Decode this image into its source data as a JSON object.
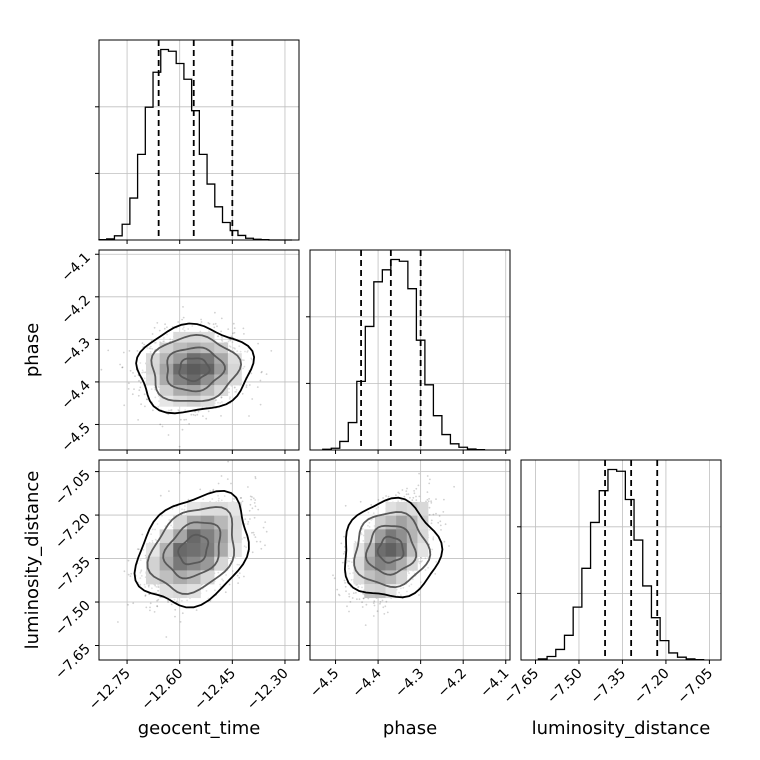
{
  "chart_data": {
    "type": "corner",
    "parameters": [
      "geocent_time",
      "phase",
      "luminosity_distance"
    ],
    "grid": true,
    "diagonal_histograms": [
      {
        "parameter": "geocent_time",
        "bin_edges": [
          -12.83,
          -12.808,
          -12.786,
          -12.764,
          -12.742,
          -12.72,
          -12.698,
          -12.676,
          -12.654,
          -12.632,
          -12.61,
          -12.588,
          -12.566,
          -12.544,
          -12.522,
          -12.5,
          -12.478,
          -12.456,
          -12.434,
          -12.412,
          -12.39,
          -12.368,
          -12.346,
          -12.324,
          -12.302,
          -12.28
        ],
        "counts": [
          1,
          3,
          12,
          45,
          120,
          245,
          380,
          480,
          545,
          540,
          505,
          460,
          370,
          245,
          160,
          95,
          50,
          27,
          13,
          5,
          2,
          1,
          0,
          0,
          0
        ],
        "quantiles": [
          -12.66,
          -12.56,
          -12.45
        ],
        "xlim": [
          -12.83,
          -12.26
        ]
      },
      {
        "parameter": "phase",
        "bin_edges": [
          -4.53,
          -4.51,
          -4.49,
          -4.47,
          -4.45,
          -4.43,
          -4.41,
          -4.39,
          -4.37,
          -4.35,
          -4.33,
          -4.31,
          -4.29,
          -4.27,
          -4.25,
          -4.23,
          -4.21,
          -4.19,
          -4.17,
          -4.15
        ],
        "counts": [
          2,
          5,
          25,
          80,
          200,
          360,
          490,
          525,
          555,
          550,
          470,
          320,
          190,
          100,
          45,
          18,
          8,
          3,
          1
        ],
        "quantiles": [
          -4.44,
          -4.37,
          -4.3
        ],
        "xlim": [
          -4.56,
          -4.09
        ]
      },
      {
        "parameter": "luminosity_distance",
        "bin_edges": [
          -7.64,
          -7.61,
          -7.58,
          -7.55,
          -7.52,
          -7.49,
          -7.46,
          -7.43,
          -7.4,
          -7.37,
          -7.34,
          -7.31,
          -7.28,
          -7.25,
          -7.22,
          -7.19,
          -7.16,
          -7.13,
          -7.1,
          -7.07
        ],
        "counts": [
          3,
          10,
          30,
          70,
          150,
          260,
          390,
          480,
          540,
          535,
          455,
          340,
          210,
          120,
          55,
          20,
          8,
          3,
          1
        ],
        "quantiles": [
          -7.41,
          -7.32,
          -7.23
        ],
        "xlim": [
          -7.7,
          -7.01
        ]
      }
    ],
    "two_d_panels": [
      {
        "x": "geocent_time",
        "y": "phase",
        "center": [
          -12.56,
          -4.37
        ],
        "sigma": [
          0.07,
          0.045
        ],
        "correlation": 0.05,
        "xlim": [
          -12.83,
          -12.26
        ],
        "ylim": [
          -4.56,
          -4.09
        ],
        "contour_levels": 4
      },
      {
        "x": "geocent_time",
        "y": "luminosity_distance",
        "center": [
          -12.56,
          -7.32
        ],
        "sigma": [
          0.07,
          0.085
        ],
        "correlation": 0.45,
        "xlim": [
          -12.83,
          -12.26
        ],
        "ylim": [
          -7.7,
          -7.01
        ],
        "contour_levels": 4
      },
      {
        "x": "phase",
        "y": "luminosity_distance",
        "center": [
          -4.37,
          -7.32
        ],
        "sigma": [
          0.045,
          0.085
        ],
        "correlation": 0.45,
        "xlim": [
          -4.56,
          -4.09
        ],
        "ylim": [
          -7.7,
          -7.01
        ],
        "contour_levels": 4
      }
    ],
    "x_ticks": {
      "geocent_time": [
        -12.75,
        -12.6,
        -12.45,
        -12.3
      ],
      "phase": [
        -4.5,
        -4.4,
        -4.3,
        -4.2,
        -4.1
      ],
      "luminosity_distance": [
        -7.65,
        -7.5,
        -7.35,
        -7.2,
        -7.05
      ]
    },
    "x_tick_labels": {
      "geocent_time": [
        "−12.75",
        "−12.60",
        "−12.45",
        "−12.30"
      ],
      "phase": [
        "−4.5",
        "−4.4",
        "−4.3",
        "−4.2",
        "−4.1"
      ],
      "luminosity_distance": [
        "−7.65",
        "−7.50",
        "−7.35",
        "−7.20",
        "−7.05"
      ]
    },
    "y_ticks": {
      "phase": [
        -4.1,
        -4.2,
        -4.3,
        -4.4,
        -4.5
      ],
      "luminosity_distance": [
        -7.05,
        -7.2,
        -7.35,
        -7.5,
        -7.65
      ]
    },
    "y_tick_labels": {
      "phase": [
        "−4.1",
        "−4.2",
        "−4.3",
        "−4.4",
        "−4.5"
      ],
      "luminosity_distance": [
        "−7.05",
        "−7.20",
        "−7.35",
        "−7.50",
        "−7.65"
      ]
    },
    "axis_labels": {
      "x": [
        "geocent_time",
        "phase",
        "luminosity_distance"
      ],
      "y": [
        "phase",
        "luminosity_distance"
      ]
    }
  }
}
